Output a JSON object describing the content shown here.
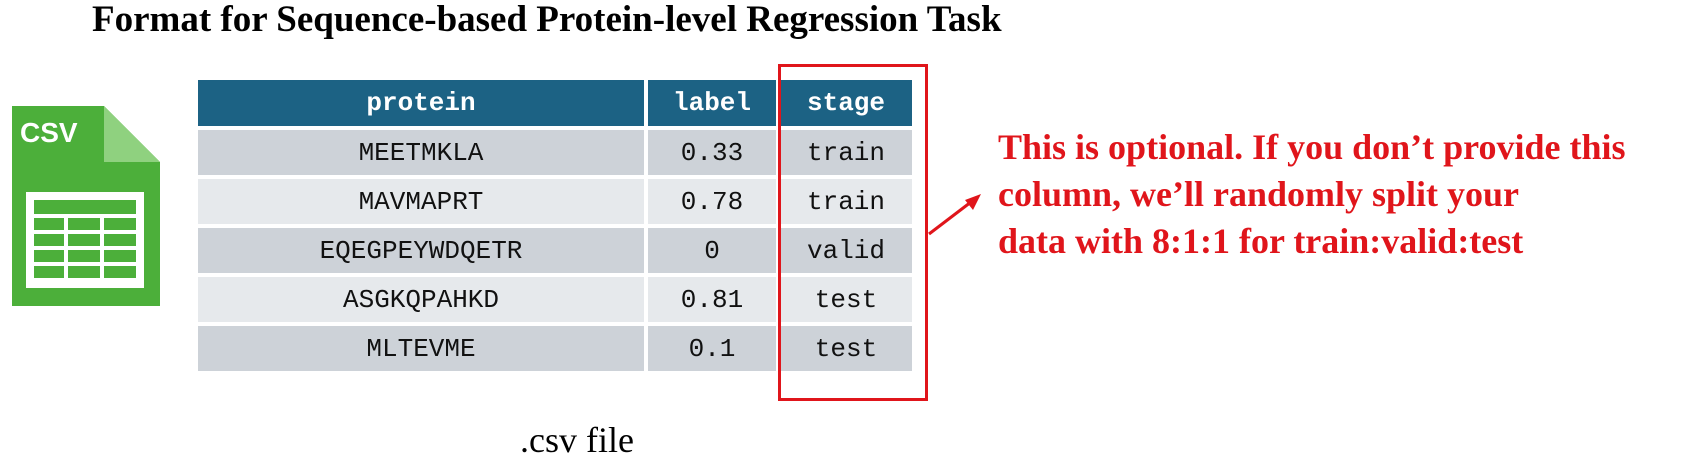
{
  "title": "Format for Sequence-based Protein-level Regression Task",
  "icon": {
    "name": "csv-file-icon",
    "label": "CSV",
    "color": "#4caf3a"
  },
  "table": {
    "headers": [
      "protein",
      "label",
      "stage"
    ],
    "rows": [
      [
        "MEETMKLA",
        "0.33",
        "train"
      ],
      [
        "MAVMAPRT",
        "0.78",
        "train"
      ],
      [
        "EQEGPEYWDQETR",
        "0",
        "valid"
      ],
      [
        "ASGKQPAHKD",
        "0.81",
        "test"
      ],
      [
        "MLTEVME",
        "0.1",
        "test"
      ]
    ],
    "header_color": "#1c6284",
    "row_colors": [
      "#cdd2d8",
      "#e6e9ec"
    ]
  },
  "highlight_color": "#e0151b",
  "note": {
    "lines": [
      "This is optional. If you don’t provide this",
      "column, we’ll randomly split your",
      "data with 8:1:1 for train:valid:test"
    ]
  },
  "caption": ".csv file"
}
